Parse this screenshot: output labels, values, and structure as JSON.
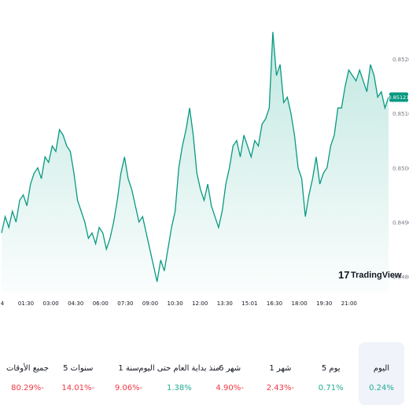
{
  "chart_data": {
    "type": "area",
    "x_ticks": [
      "4",
      "01:30",
      "03:00",
      "04:30",
      "06:00",
      "07:30",
      "09:00",
      "10:30",
      "12:00",
      "13:30",
      "15:01",
      "16:30",
      "18:00",
      "19:30",
      "21:00"
    ],
    "y_ticks": [
      "0.85200",
      "0.85100",
      "0.85000",
      "0.84900",
      "0.84800"
    ],
    "y_tick_values": [
      0.852,
      0.851,
      0.85,
      0.849,
      0.848
    ],
    "ylim": [
      0.8477,
      0.8528
    ],
    "last_value_label": "0.85121",
    "series": [
      {
        "values": [
          0.8488,
          0.8491,
          0.8489,
          0.8492,
          0.849,
          0.8494,
          0.8495,
          0.8493,
          0.8497,
          0.8499,
          0.85,
          0.8498,
          0.8502,
          0.8501,
          0.8504,
          0.8503,
          0.8507,
          0.8506,
          0.8504,
          0.8503,
          0.8499,
          0.8494,
          0.8492,
          0.849,
          0.8487,
          0.8488,
          0.8486,
          0.8489,
          0.8488,
          0.8485,
          0.8487,
          0.849,
          0.8494,
          0.8499,
          0.8502,
          0.8498,
          0.8496,
          0.8493,
          0.849,
          0.8491,
          0.8488,
          0.8485,
          0.8482,
          0.8479,
          0.8483,
          0.8481,
          0.8485,
          0.8489,
          0.8492,
          0.85,
          0.8504,
          0.8507,
          0.8511,
          0.8506,
          0.8499,
          0.8496,
          0.8494,
          0.8497,
          0.8493,
          0.8491,
          0.8489,
          0.8492,
          0.8497,
          0.85,
          0.8504,
          0.8505,
          0.8502,
          0.8506,
          0.8504,
          0.8502,
          0.8505,
          0.8504,
          0.8508,
          0.8509,
          0.8511,
          0.8525,
          0.8517,
          0.8519,
          0.8512,
          0.8513,
          0.851,
          0.8506,
          0.85,
          0.8498,
          0.8491,
          0.8495,
          0.8498,
          0.8502,
          0.8497,
          0.8499,
          0.85,
          0.8504,
          0.8506,
          0.8511,
          0.8511,
          0.8515,
          0.8518,
          0.8517,
          0.8516,
          0.8518,
          0.8516,
          0.8514,
          0.8519,
          0.8517,
          0.8513,
          0.8514,
          0.8511,
          0.8513
        ],
        "fill_color": "#22ab94",
        "line_color": "#089981"
      }
    ]
  },
  "watermark": {
    "text": "TradingView",
    "logo": "17"
  },
  "periods": [
    {
      "label": "اليوم",
      "value": "0.24%",
      "status": "positive",
      "active": true
    },
    {
      "label": "5 يوم",
      "value": "0.71%",
      "status": "positive",
      "active": false
    },
    {
      "label": "1 شهر",
      "value": "2.43%-",
      "status": "negative",
      "active": false
    },
    {
      "label": "6 شهر",
      "value": "4.90%-",
      "status": "negative",
      "active": false
    },
    {
      "label": "منذ بداية العام حتى اليوم",
      "value": "1.38%",
      "status": "positive",
      "active": false
    },
    {
      "label": "1 سنة",
      "value": "9.06%-",
      "status": "negative",
      "active": false
    },
    {
      "label": "5 سنوات",
      "value": "14.01%-",
      "status": "negative",
      "active": false
    },
    {
      "label": "جميع الأوقات",
      "value": "80.29%-",
      "status": "negative",
      "active": false
    }
  ]
}
